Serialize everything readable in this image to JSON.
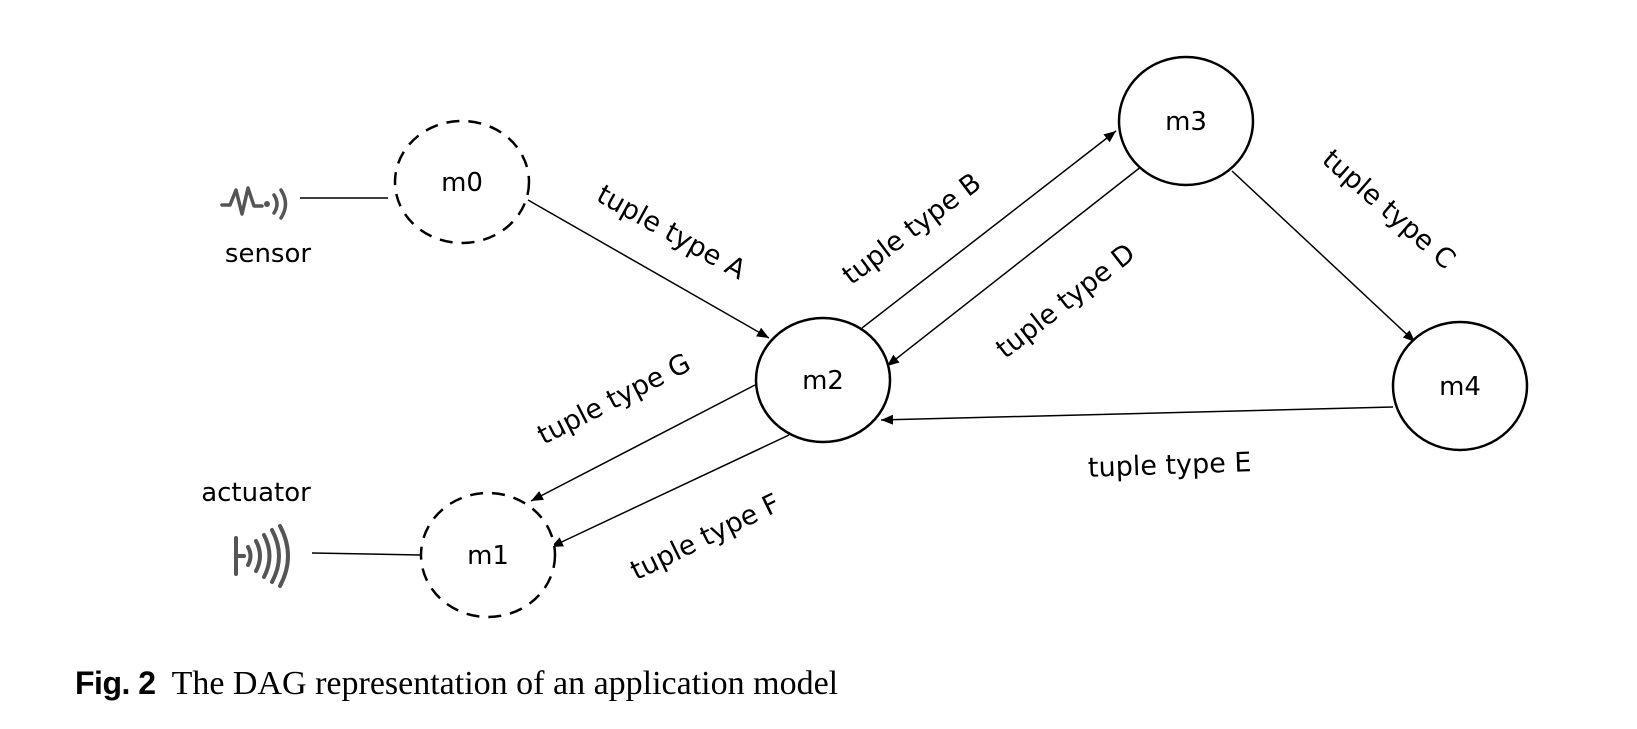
{
  "nodes": [
    {
      "id": "m0",
      "label": "m0",
      "style": "dashed"
    },
    {
      "id": "m1",
      "label": "m1",
      "style": "dashed"
    },
    {
      "id": "m2",
      "label": "m2",
      "style": "solid"
    },
    {
      "id": "m3",
      "label": "m3",
      "style": "solid"
    },
    {
      "id": "m4",
      "label": "m4",
      "style": "solid"
    }
  ],
  "edges": [
    {
      "from": "m0",
      "to": "m2",
      "label": "tuple type A"
    },
    {
      "from": "m2",
      "to": "m3",
      "label": "tuple type B"
    },
    {
      "from": "m3",
      "to": "m4",
      "label": "tuple type C"
    },
    {
      "from": "m3",
      "to": "m2",
      "label": "tuple type D"
    },
    {
      "from": "m4",
      "to": "m2",
      "label": "tuple type E"
    },
    {
      "from": "m2",
      "to": "m1",
      "label": "tuple type F"
    },
    {
      "from": "m2",
      "to": "m1",
      "label": "tuple type G"
    }
  ],
  "devices": {
    "sensor": {
      "label": "sensor",
      "icon": "sensor-icon",
      "connects_to": "m0"
    },
    "actuator": {
      "label": "actuator",
      "icon": "actuator-icon",
      "connects_to": "m1"
    }
  },
  "caption": {
    "fig_number": "Fig. 2",
    "text": "The DAG representation of an application model"
  }
}
